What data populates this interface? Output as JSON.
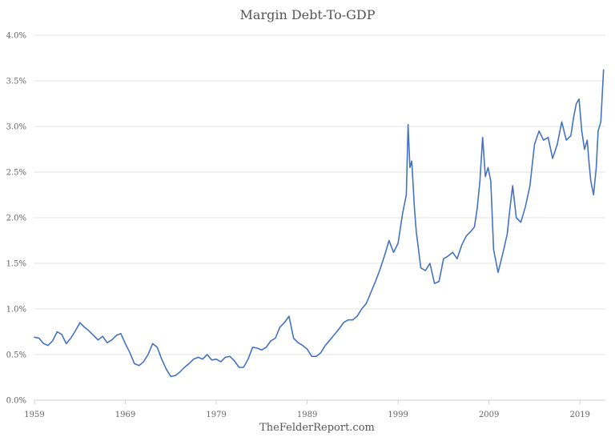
{
  "chart_data": {
    "type": "line",
    "title": "Margin Debt-To-GDP",
    "source": "TheFelderReport.com",
    "xlabel": "",
    "ylabel": "",
    "xlim": [
      1959.0,
      2021.8
    ],
    "ylim": [
      0,
      4.0
    ],
    "y_ticks": [
      {
        "value": 0.0,
        "label": "0.0%"
      },
      {
        "value": 0.5,
        "label": "0.5%"
      },
      {
        "value": 1.0,
        "label": "1.0%"
      },
      {
        "value": 1.5,
        "label": "1.5%"
      },
      {
        "value": 2.0,
        "label": "2.0%"
      },
      {
        "value": 2.5,
        "label": "2.5%"
      },
      {
        "value": 3.0,
        "label": "3.0%"
      },
      {
        "value": 3.5,
        "label": "3.5%"
      },
      {
        "value": 4.0,
        "label": "4.0%"
      }
    ],
    "x_ticks": [
      {
        "value": 1959,
        "label": "1959"
      },
      {
        "value": 1969,
        "label": "1969"
      },
      {
        "value": 1979,
        "label": "1979"
      },
      {
        "value": 1989,
        "label": "1989"
      },
      {
        "value": 1999,
        "label": "1999"
      },
      {
        "value": 2009,
        "label": "2009"
      },
      {
        "value": 2019,
        "label": "2019"
      }
    ],
    "grid": true,
    "legend": "none",
    "colors": {
      "series": "#4472c4",
      "grid": "#e3e3e3",
      "text": "#555555"
    },
    "series": [
      {
        "x": [
          1959.0,
          1959.5,
          1960.0,
          1960.5,
          1961.0,
          1961.5,
          1962.0,
          1962.5,
          1963.0,
          1963.5,
          1964.0,
          1964.5,
          1965.0,
          1965.5,
          1966.0,
          1966.5,
          1967.0,
          1967.5,
          1968.0,
          1968.5,
          1969.0,
          1969.5,
          1970.0,
          1970.5,
          1971.0,
          1971.5,
          1972.0,
          1972.5,
          1973.0,
          1973.5,
          1974.0,
          1974.5,
          1975.0,
          1975.5,
          1976.0,
          1976.5,
          1977.0,
          1977.5,
          1978.0,
          1978.5,
          1979.0,
          1979.5,
          1980.0,
          1980.5,
          1981.0,
          1981.5,
          1982.0,
          1982.5,
          1983.0,
          1983.5,
          1984.0,
          1984.5,
          1985.0,
          1985.5,
          1986.0,
          1986.5,
          1987.0,
          1987.5,
          1987.8,
          1988.0,
          1988.5,
          1989.0,
          1989.5,
          1990.0,
          1990.5,
          1991.0,
          1991.5,
          1992.0,
          1992.5,
          1993.0,
          1993.5,
          1994.0,
          1994.5,
          1995.0,
          1995.5,
          1996.0,
          1996.5,
          1997.0,
          1997.5,
          1998.0,
          1998.5,
          1999.0,
          1999.5,
          1999.9,
          2000.1,
          2000.3,
          2000.5,
          2000.8,
          2001.0,
          2001.5,
          2002.0,
          2002.5,
          2003.0,
          2003.5,
          2004.0,
          2004.5,
          2005.0,
          2005.5,
          2006.0,
          2006.5,
          2007.0,
          2007.4,
          2007.7,
          2008.0,
          2008.3,
          2008.6,
          2008.9,
          2009.2,
          2009.5,
          2010.0,
          2010.5,
          2011.0,
          2011.3,
          2011.6,
          2012.0,
          2012.5,
          2013.0,
          2013.5,
          2014.0,
          2014.5,
          2015.0,
          2015.5,
          2016.0,
          2016.5,
          2017.0,
          2017.5,
          2018.0,
          2018.3,
          2018.6,
          2018.9,
          2019.2,
          2019.5,
          2019.8,
          2020.0,
          2020.2,
          2020.5,
          2020.8,
          2021.0,
          2021.3,
          2021.6
        ],
        "y": [
          0.69,
          0.68,
          0.62,
          0.6,
          0.65,
          0.75,
          0.72,
          0.62,
          0.68,
          0.76,
          0.85,
          0.8,
          0.76,
          0.71,
          0.66,
          0.7,
          0.63,
          0.66,
          0.71,
          0.73,
          0.62,
          0.52,
          0.4,
          0.38,
          0.42,
          0.5,
          0.62,
          0.58,
          0.45,
          0.34,
          0.26,
          0.27,
          0.31,
          0.36,
          0.4,
          0.45,
          0.47,
          0.45,
          0.5,
          0.44,
          0.45,
          0.42,
          0.47,
          0.48,
          0.43,
          0.36,
          0.36,
          0.45,
          0.58,
          0.57,
          0.55,
          0.58,
          0.65,
          0.68,
          0.8,
          0.85,
          0.92,
          0.68,
          0.65,
          0.63,
          0.6,
          0.56,
          0.48,
          0.48,
          0.52,
          0.6,
          0.66,
          0.72,
          0.78,
          0.85,
          0.88,
          0.88,
          0.92,
          1.0,
          1.06,
          1.18,
          1.3,
          1.43,
          1.58,
          1.75,
          1.62,
          1.72,
          2.05,
          2.25,
          3.02,
          2.55,
          2.62,
          2.1,
          1.85,
          1.45,
          1.42,
          1.5,
          1.28,
          1.3,
          1.55,
          1.58,
          1.62,
          1.55,
          1.7,
          1.8,
          1.85,
          1.9,
          2.1,
          2.4,
          2.88,
          2.45,
          2.55,
          2.4,
          1.65,
          1.4,
          1.6,
          1.82,
          2.1,
          2.35,
          2.0,
          1.95,
          2.12,
          2.35,
          2.8,
          2.95,
          2.85,
          2.88,
          2.65,
          2.8,
          3.05,
          2.85,
          2.9,
          3.1,
          3.25,
          3.3,
          2.95,
          2.75,
          2.85,
          2.6,
          2.4,
          2.25,
          2.55,
          2.95,
          3.05,
          3.62
        ]
      }
    ]
  }
}
